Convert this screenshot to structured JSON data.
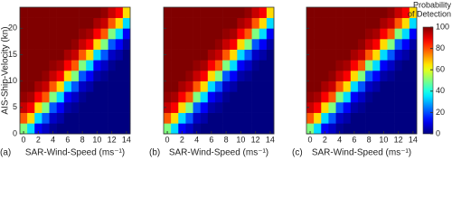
{
  "chart_data": [
    {
      "type": "heatmap",
      "panel_label": "(a)",
      "x_label": "SAR-Wind-Speed (ms⁻¹)",
      "y_label": "AIS-Ship-Velocity (kn)",
      "x": [
        0,
        1,
        2,
        3,
        4,
        5,
        6,
        7,
        8,
        9,
        10,
        11,
        12,
        13,
        14
      ],
      "y": [
        1,
        3,
        5,
        7,
        9,
        11,
        13,
        15,
        17,
        19,
        21,
        23
      ],
      "xlim": [
        -0.5,
        14.5
      ],
      "ylim": [
        0,
        24
      ],
      "xticks": [
        0,
        2,
        4,
        6,
        8,
        10,
        12,
        14
      ],
      "yticks": [
        0,
        5,
        10,
        15,
        20
      ],
      "ytick_labels": true,
      "zlim": [
        0,
        100
      ],
      "z": [
        [
          50,
          34,
          12,
          7,
          2,
          0,
          0,
          0,
          0,
          0,
          0,
          0,
          0,
          0,
          0
        ],
        [
          79,
          66,
          34,
          21,
          7,
          4,
          0,
          0,
          0,
          0,
          0,
          0,
          0,
          0,
          0
        ],
        [
          93,
          88,
          66,
          50,
          21,
          12,
          4,
          2,
          0,
          0,
          0,
          0,
          0,
          0,
          0
        ],
        [
          98,
          96,
          88,
          79,
          50,
          34,
          12,
          7,
          2,
          0,
          0,
          0,
          0,
          0,
          0
        ],
        [
          100,
          100,
          96,
          93,
          79,
          66,
          34,
          21,
          7,
          4,
          0,
          0,
          0,
          0,
          0
        ],
        [
          100,
          100,
          100,
          98,
          93,
          88,
          66,
          50,
          21,
          12,
          4,
          2,
          0,
          0,
          0
        ],
        [
          100,
          100,
          100,
          100,
          98,
          96,
          88,
          79,
          50,
          34,
          12,
          7,
          2,
          0,
          0
        ],
        [
          100,
          100,
          100,
          100,
          100,
          100,
          96,
          93,
          79,
          66,
          34,
          21,
          7,
          4,
          0
        ],
        [
          100,
          100,
          100,
          100,
          100,
          100,
          100,
          98,
          93,
          88,
          66,
          50,
          21,
          12,
          4
        ],
        [
          100,
          100,
          100,
          100,
          100,
          100,
          100,
          100,
          98,
          96,
          88,
          79,
          50,
          34,
          12
        ],
        [
          100,
          100,
          100,
          100,
          100,
          100,
          100,
          100,
          100,
          100,
          96,
          93,
          79,
          66,
          34
        ],
        [
          100,
          100,
          100,
          100,
          100,
          100,
          100,
          100,
          100,
          100,
          100,
          98,
          93,
          88,
          66
        ]
      ]
    },
    {
      "type": "heatmap",
      "panel_label": "(b)",
      "x_label": "SAR-Wind-Speed (ms⁻¹)",
      "x": [
        0,
        1,
        2,
        3,
        4,
        5,
        6,
        7,
        8,
        9,
        10,
        11,
        12,
        13,
        14
      ],
      "y": [
        1,
        3,
        5,
        7,
        9,
        11,
        13,
        15,
        17,
        19,
        21,
        23
      ],
      "xlim": [
        -0.5,
        14.5
      ],
      "ylim": [
        0,
        24
      ],
      "xticks": [
        0,
        2,
        4,
        6,
        8,
        10,
        12,
        14
      ],
      "yticks": [
        0,
        5,
        10,
        15,
        20
      ],
      "ytick_labels": false,
      "zlim": [
        0,
        100
      ],
      "z": [
        [
          50,
          34,
          12,
          7,
          2,
          0,
          0,
          0,
          0,
          0,
          0,
          0,
          0,
          0,
          0
        ],
        [
          79,
          66,
          34,
          21,
          7,
          4,
          0,
          0,
          0,
          0,
          0,
          0,
          0,
          0,
          0
        ],
        [
          93,
          88,
          66,
          50,
          21,
          12,
          4,
          2,
          0,
          0,
          0,
          0,
          0,
          0,
          0
        ],
        [
          98,
          96,
          88,
          79,
          50,
          34,
          12,
          7,
          2,
          0,
          0,
          0,
          0,
          0,
          0
        ],
        [
          100,
          100,
          96,
          93,
          79,
          66,
          34,
          21,
          7,
          4,
          0,
          0,
          0,
          0,
          0
        ],
        [
          100,
          100,
          100,
          98,
          93,
          88,
          66,
          50,
          21,
          12,
          4,
          2,
          0,
          0,
          0
        ],
        [
          100,
          100,
          100,
          100,
          98,
          96,
          88,
          79,
          50,
          34,
          12,
          7,
          2,
          0,
          0
        ],
        [
          100,
          100,
          100,
          100,
          100,
          100,
          96,
          93,
          79,
          66,
          34,
          21,
          7,
          4,
          0
        ],
        [
          100,
          100,
          100,
          100,
          100,
          100,
          100,
          98,
          93,
          88,
          66,
          50,
          21,
          12,
          4
        ],
        [
          100,
          100,
          100,
          100,
          100,
          100,
          100,
          100,
          98,
          96,
          88,
          79,
          50,
          34,
          12
        ],
        [
          100,
          100,
          100,
          100,
          100,
          100,
          100,
          100,
          100,
          100,
          96,
          93,
          79,
          66,
          34
        ],
        [
          100,
          100,
          100,
          100,
          100,
          100,
          100,
          100,
          100,
          100,
          100,
          98,
          93,
          88,
          66
        ]
      ]
    },
    {
      "type": "heatmap",
      "panel_label": "(c)",
      "x_label": "SAR-Wind-Speed (ms⁻¹)",
      "x": [
        0,
        1,
        2,
        3,
        4,
        5,
        6,
        7,
        8,
        9,
        10,
        11,
        12,
        13,
        14
      ],
      "y": [
        1,
        3,
        5,
        7,
        9,
        11,
        13,
        15,
        17,
        19,
        21,
        23
      ],
      "xlim": [
        -0.5,
        14.5
      ],
      "ylim": [
        0,
        24
      ],
      "xticks": [
        0,
        2,
        4,
        6,
        8,
        10,
        12,
        14
      ],
      "yticks": [
        0,
        5,
        10,
        15,
        20
      ],
      "ytick_labels": false,
      "zlim": [
        0,
        100
      ],
      "z": [
        [
          50,
          34,
          12,
          7,
          2,
          0,
          0,
          0,
          0,
          0,
          0,
          0,
          0,
          0,
          0
        ],
        [
          79,
          66,
          34,
          21,
          7,
          4,
          0,
          0,
          0,
          0,
          0,
          0,
          0,
          0,
          0
        ],
        [
          93,
          88,
          66,
          50,
          21,
          12,
          4,
          2,
          0,
          0,
          0,
          0,
          0,
          0,
          0
        ],
        [
          98,
          96,
          88,
          79,
          50,
          34,
          12,
          7,
          2,
          0,
          0,
          0,
          0,
          0,
          0
        ],
        [
          100,
          100,
          96,
          93,
          79,
          66,
          34,
          21,
          7,
          4,
          0,
          0,
          0,
          0,
          0
        ],
        [
          100,
          100,
          100,
          98,
          93,
          88,
          66,
          50,
          21,
          12,
          4,
          2,
          0,
          0,
          0
        ],
        [
          100,
          100,
          100,
          100,
          98,
          96,
          88,
          79,
          50,
          34,
          12,
          7,
          2,
          0,
          0
        ],
        [
          100,
          100,
          100,
          100,
          100,
          100,
          96,
          93,
          79,
          66,
          34,
          21,
          7,
          4,
          0
        ],
        [
          100,
          100,
          100,
          100,
          100,
          100,
          100,
          98,
          93,
          88,
          66,
          50,
          21,
          12,
          4
        ],
        [
          100,
          100,
          100,
          100,
          100,
          100,
          100,
          100,
          98,
          96,
          88,
          79,
          50,
          34,
          12
        ],
        [
          100,
          100,
          100,
          100,
          100,
          100,
          100,
          100,
          100,
          100,
          96,
          93,
          79,
          66,
          34
        ],
        [
          100,
          100,
          100,
          100,
          100,
          100,
          100,
          100,
          100,
          100,
          100,
          98,
          93,
          88,
          66
        ]
      ],
      "colorbar": {
        "title": [
          "Probability",
          "of Detection"
        ],
        "lim": [
          0,
          100
        ],
        "ticks": [
          0,
          20,
          40,
          60,
          80,
          100
        ]
      }
    }
  ]
}
